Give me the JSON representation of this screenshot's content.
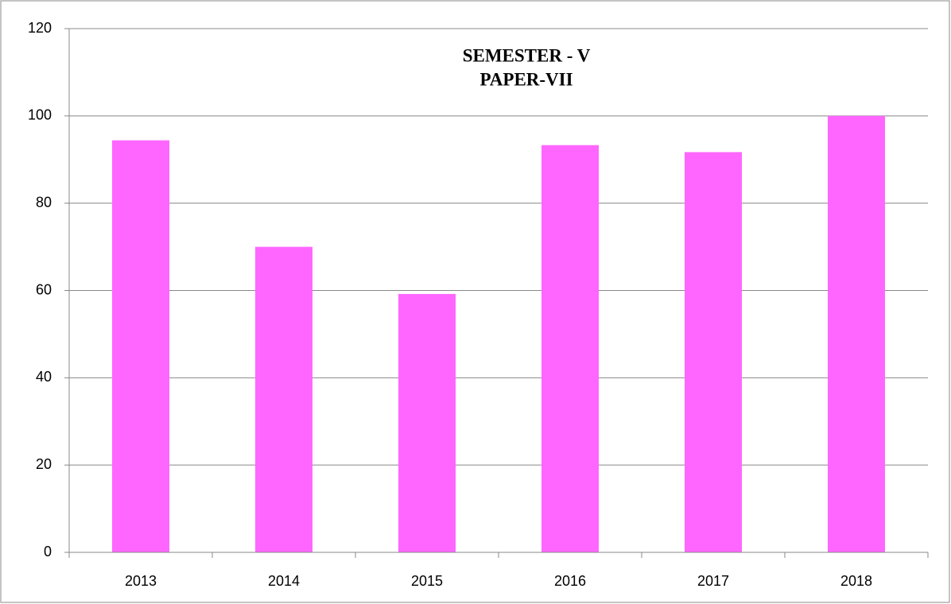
{
  "chart_data": {
    "type": "bar",
    "title": [
      "SEMESTER - V",
      "PAPER-VII"
    ],
    "categories": [
      "2013",
      "2014",
      "2015",
      "2016",
      "2017",
      "2018"
    ],
    "values": [
      94.4,
      70,
      59.2,
      93.3,
      91.7,
      100
    ],
    "color": "#ff66ff",
    "ylim": [
      0,
      120
    ],
    "yticks": [
      0,
      20,
      40,
      60,
      80,
      100,
      120
    ],
    "grid": true
  }
}
